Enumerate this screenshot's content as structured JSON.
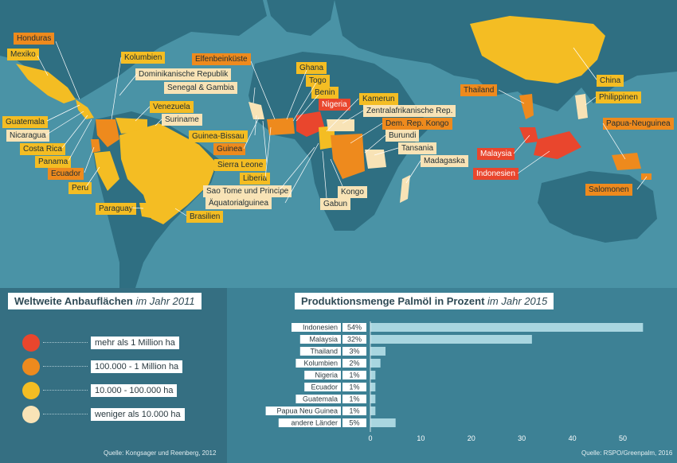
{
  "map": {
    "colors": {
      "more_1m": "#e9462d",
      "100k_1m": "#ee8a1d",
      "10k_100k": "#f4bd23",
      "less_10k": "#f8e3b6",
      "ocean": "#4a93a6",
      "land": "#2f6f82"
    },
    "labels": {
      "honduras": "Honduras",
      "mexiko": "Mexiko",
      "kolumbien": "Kolumbien",
      "dominikanische_republik": "Dominikanische Republik",
      "venezuela": "Venezuela",
      "suriname": "Suriname",
      "guatemala": "Guatemala",
      "nicaragua": "Nicaragua",
      "costa_rica": "Costa Rica",
      "panama": "Panama",
      "ecuador": "Ecuador",
      "peru": "Peru",
      "paraguay": "Paraguay",
      "brasilien": "Brasilien",
      "elfenbeinkueste": "Elfenbeinküste",
      "senegal_gambia": "Senegal & Gambia",
      "guinea_bissau": "Guinea-Bissau",
      "guinea": "Guinea",
      "sierra_leone": "Sierra Leone",
      "liberia": "Liberia",
      "sao_tome": "Sao Tome und Principe",
      "aequatorialguinea": "Äquatorialguinea",
      "ghana": "Ghana",
      "togo": "Togo",
      "benin": "Benin",
      "nigeria": "Nigeria",
      "kamerun": "Kamerun",
      "zentralafrikanische_rep": "Zentralafrikanische Rep.",
      "dem_rep_kongo": "Dem. Rep. Kongo",
      "burundi": "Burundi",
      "tansania": "Tansania",
      "madagaska": "Madagaska",
      "kongo": "Kongo",
      "gabun": "Gabun",
      "china": "China",
      "thailand": "Thailand",
      "philippinen": "Philippinen",
      "papua_neuguinea": "Papua-Neuguinea",
      "malaysia": "Malaysia",
      "indonesien": "Indonesien",
      "salomonen": "Salomonen"
    }
  },
  "legend": {
    "title": "Weltweite Anbauflächen",
    "subtitle": "im Jahr 2011",
    "items": [
      {
        "label": "mehr als 1 Million ha",
        "color": "#e9462d"
      },
      {
        "label": "100.000 - 1 Million ha",
        "color": "#ee8a1d"
      },
      {
        "label": "10.000 - 100.000 ha",
        "color": "#f4bd23"
      },
      {
        "label": "weniger als 10.000 ha",
        "color": "#f8e3b6"
      }
    ],
    "source": "Quelle: Kongsager und Reenberg, 2012"
  },
  "production": {
    "title": "Produktionsmenge Palmöl in Prozent",
    "subtitle": "im Jahr 2015",
    "source": "Quelle: RSPO/Greenpalm, 2016"
  },
  "chart_data": {
    "type": "bar",
    "orientation": "horizontal",
    "categories": [
      "Indonesien",
      "Malaysia",
      "Thailand",
      "Kolumbien",
      "Nigeria",
      "Ecuador",
      "Guatemala",
      "Papua Neu Guinea",
      "andere Länder"
    ],
    "values": [
      54,
      32,
      3,
      2,
      1,
      1,
      1,
      1,
      5
    ],
    "value_labels": [
      "54%",
      "32%",
      "3%",
      "2%",
      "1%",
      "1%",
      "1%",
      "1%",
      "5%"
    ],
    "xlim": [
      0,
      56
    ],
    "xticks": [
      0,
      10,
      20,
      30,
      40,
      50
    ],
    "bar_color": "#a9d6e0",
    "title": "Produktionsmenge Palmöl in Prozent",
    "subtitle": "im Jahr 2015"
  }
}
